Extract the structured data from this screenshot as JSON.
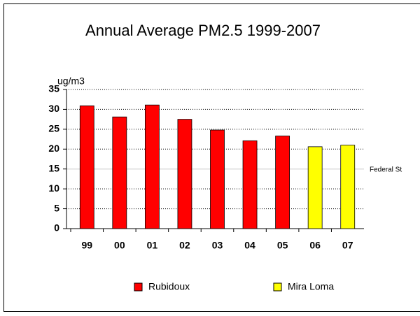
{
  "chart_data": {
    "type": "bar",
    "title": "Annual Average PM2.5 1999-2007",
    "y_label": "ug/m3",
    "categories": [
      "99",
      "00",
      "01",
      "02",
      "03",
      "04",
      "05",
      "06",
      "07"
    ],
    "series": [
      {
        "name": "Rubidoux",
        "color": "#ff0000",
        "values": [
          30.9,
          28.1,
          31.1,
          27.5,
          24.8,
          22.1,
          23.3,
          null,
          null
        ]
      },
      {
        "name": "Mira Loma",
        "color": "#ffff00",
        "values": [
          null,
          null,
          null,
          null,
          null,
          null,
          null,
          20.6,
          21.0
        ]
      }
    ],
    "reference_line": {
      "label": "Federal St",
      "value": 15
    },
    "ylim": [
      0,
      35
    ],
    "yticks": [
      0,
      5,
      10,
      15,
      20,
      25,
      30,
      35
    ],
    "grid": true
  }
}
